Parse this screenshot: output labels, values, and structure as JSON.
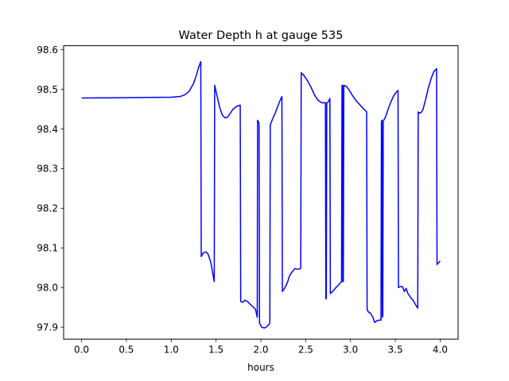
{
  "chart_data": {
    "type": "line",
    "title": "Water Depth h at gauge 535",
    "xlabel": "hours",
    "ylabel": "",
    "xlim": [
      -0.2,
      4.2
    ],
    "ylim": [
      97.87,
      98.61
    ],
    "x_ticks": [
      {
        "value": 0.0,
        "label": "0.0"
      },
      {
        "value": 0.5,
        "label": "0.5"
      },
      {
        "value": 1.0,
        "label": "1.0"
      },
      {
        "value": 1.5,
        "label": "1.5"
      },
      {
        "value": 2.0,
        "label": "2.0"
      },
      {
        "value": 2.5,
        "label": "2.5"
      },
      {
        "value": 3.0,
        "label": "3.0"
      },
      {
        "value": 3.5,
        "label": "3.5"
      },
      {
        "value": 4.0,
        "label": "4.0"
      }
    ],
    "y_ticks": [
      {
        "value": 97.9,
        "label": "97.9"
      },
      {
        "value": 98.0,
        "label": "98.0"
      },
      {
        "value": 98.1,
        "label": "98.1"
      },
      {
        "value": 98.2,
        "label": "98.2"
      },
      {
        "value": 98.3,
        "label": "98.3"
      },
      {
        "value": 98.4,
        "label": "98.4"
      },
      {
        "value": 98.5,
        "label": "98.5"
      },
      {
        "value": 98.6,
        "label": "98.6"
      }
    ],
    "grid": false,
    "legend": "none",
    "series": [
      {
        "color": "#0000ff",
        "points": [
          [
            0.0,
            98.478
          ],
          [
            0.5,
            98.479
          ],
          [
            1.0,
            98.48
          ],
          [
            1.1,
            98.482
          ],
          [
            1.15,
            98.486
          ],
          [
            1.2,
            98.495
          ],
          [
            1.25,
            98.515
          ],
          [
            1.28,
            98.535
          ],
          [
            1.305,
            98.555
          ],
          [
            1.33,
            98.57
          ],
          [
            1.335,
            98.078
          ],
          [
            1.36,
            98.088
          ],
          [
            1.385,
            98.09
          ],
          [
            1.41,
            98.085
          ],
          [
            1.44,
            98.065
          ],
          [
            1.46,
            98.04
          ],
          [
            1.48,
            98.015
          ],
          [
            1.485,
            98.51
          ],
          [
            1.51,
            98.485
          ],
          [
            1.54,
            98.455
          ],
          [
            1.57,
            98.435
          ],
          [
            1.6,
            98.428
          ],
          [
            1.63,
            98.43
          ],
          [
            1.66,
            98.44
          ],
          [
            1.69,
            98.45
          ],
          [
            1.73,
            98.457
          ],
          [
            1.77,
            98.46
          ],
          [
            1.775,
            97.965
          ],
          [
            1.8,
            97.963
          ],
          [
            1.82,
            97.968
          ],
          [
            1.85,
            97.965
          ],
          [
            1.88,
            97.958
          ],
          [
            1.91,
            97.952
          ],
          [
            1.94,
            97.945
          ],
          [
            1.96,
            97.925
          ],
          [
            1.963,
            98.422
          ],
          [
            1.975,
            98.418
          ],
          [
            1.98,
            98.412
          ],
          [
            1.985,
            97.91
          ],
          [
            2.01,
            97.9
          ],
          [
            2.04,
            97.898
          ],
          [
            2.07,
            97.902
          ],
          [
            2.1,
            97.91
          ],
          [
            2.105,
            98.41
          ],
          [
            2.13,
            98.425
          ],
          [
            2.16,
            98.44
          ],
          [
            2.19,
            98.458
          ],
          [
            2.22,
            98.475
          ],
          [
            2.235,
            98.482
          ],
          [
            2.24,
            97.99
          ],
          [
            2.27,
            98.0
          ],
          [
            2.3,
            98.015
          ],
          [
            2.32,
            98.03
          ],
          [
            2.35,
            98.04
          ],
          [
            2.38,
            98.048
          ],
          [
            2.41,
            98.046
          ],
          [
            2.445,
            98.048
          ],
          [
            2.45,
            98.542
          ],
          [
            2.48,
            98.535
          ],
          [
            2.52,
            98.522
          ],
          [
            2.56,
            98.505
          ],
          [
            2.6,
            98.485
          ],
          [
            2.64,
            98.472
          ],
          [
            2.68,
            98.466
          ],
          [
            2.72,
            98.466
          ],
          [
            2.725,
            97.972
          ],
          [
            2.73,
            97.972
          ],
          [
            2.735,
            98.466
          ],
          [
            2.75,
            98.468
          ],
          [
            2.77,
            98.477
          ],
          [
            2.775,
            97.985
          ],
          [
            2.8,
            97.99
          ],
          [
            2.83,
            97.998
          ],
          [
            2.86,
            98.005
          ],
          [
            2.9,
            98.015
          ],
          [
            2.905,
            98.51
          ],
          [
            2.91,
            98.51
          ],
          [
            2.915,
            98.015
          ],
          [
            2.92,
            98.015
          ],
          [
            2.925,
            98.51
          ],
          [
            2.95,
            98.508
          ],
          [
            2.98,
            98.5
          ],
          [
            3.02,
            98.485
          ],
          [
            3.06,
            98.472
          ],
          [
            3.1,
            98.462
          ],
          [
            3.14,
            98.452
          ],
          [
            3.18,
            98.443
          ],
          [
            3.185,
            97.945
          ],
          [
            3.2,
            97.938
          ],
          [
            3.22,
            97.936
          ],
          [
            3.25,
            97.925
          ],
          [
            3.27,
            97.912
          ],
          [
            3.3,
            97.917
          ],
          [
            3.33,
            97.918
          ],
          [
            3.34,
            97.918
          ],
          [
            3.345,
            98.418
          ],
          [
            3.35,
            98.422
          ],
          [
            3.355,
            97.925
          ],
          [
            3.36,
            97.93
          ],
          [
            3.365,
            98.42
          ],
          [
            3.39,
            98.43
          ],
          [
            3.42,
            98.45
          ],
          [
            3.45,
            98.468
          ],
          [
            3.48,
            98.483
          ],
          [
            3.51,
            98.493
          ],
          [
            3.53,
            98.497
          ],
          [
            3.535,
            98.0
          ],
          [
            3.56,
            98.003
          ],
          [
            3.58,
            98.002
          ],
          [
            3.6,
            97.99
          ],
          [
            3.62,
            97.998
          ],
          [
            3.64,
            97.985
          ],
          [
            3.67,
            97.975
          ],
          [
            3.7,
            97.967
          ],
          [
            3.73,
            97.955
          ],
          [
            3.75,
            97.948
          ],
          [
            3.755,
            98.443
          ],
          [
            3.77,
            98.44
          ],
          [
            3.79,
            98.442
          ],
          [
            3.81,
            98.45
          ],
          [
            3.84,
            98.477
          ],
          [
            3.87,
            98.505
          ],
          [
            3.9,
            98.528
          ],
          [
            3.93,
            98.545
          ],
          [
            3.96,
            98.552
          ],
          [
            3.965,
            98.058
          ],
          [
            3.98,
            98.062
          ],
          [
            4.0,
            98.067
          ]
        ]
      }
    ]
  }
}
